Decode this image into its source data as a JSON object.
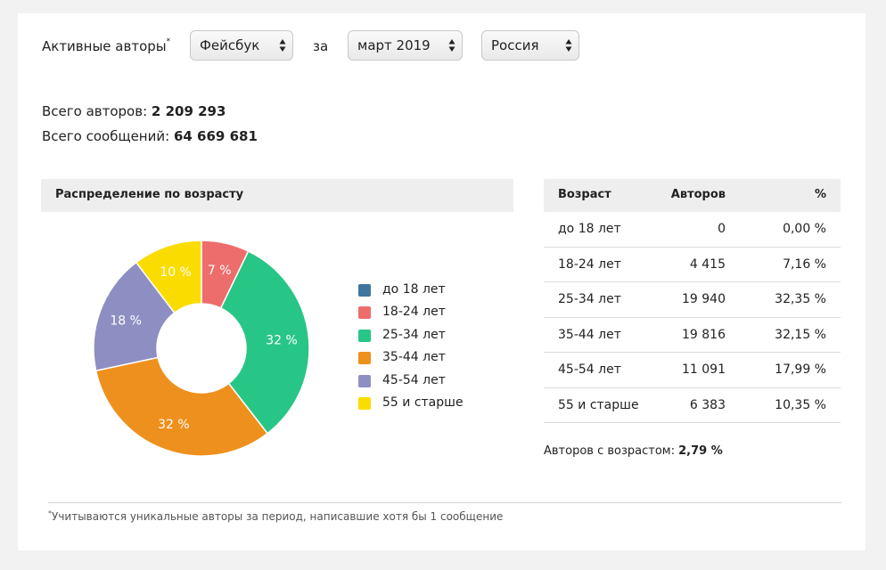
{
  "filters": {
    "label": "Активные авторы",
    "footnote_mark": "*",
    "network": "Фейсбук",
    "period_label": "за",
    "period": "март 2019",
    "region": "Россия"
  },
  "totals": {
    "authors_label": "Всего авторов:",
    "authors_value": "2 209 293",
    "messages_label": "Всего сообщений:",
    "messages_value": "64 669 681"
  },
  "panel_title": "Распределение по возрасту",
  "chart_data": {
    "type": "pie",
    "categories": [
      "до 18 лет",
      "18-24 лет",
      "25-34 лет",
      "35-44 лет",
      "45-54 лет",
      "55 и старше"
    ],
    "values": [
      0.0,
      7.16,
      32.35,
      32.15,
      17.99,
      10.35
    ],
    "data_labels": [
      "",
      "7 %",
      "32 %",
      "32 %",
      "18 %",
      "10 %"
    ],
    "colors": [
      "#3f76a0",
      "#ed6d6c",
      "#27c687",
      "#ee901d",
      "#8d8fc2",
      "#fbdc00"
    ],
    "donut": true,
    "legend_placement": "right"
  },
  "table": {
    "headers": [
      "Возраст",
      "Авторов",
      "%"
    ],
    "rows": [
      [
        "до 18 лет",
        "0",
        "0,00 %"
      ],
      [
        "18-24 лет",
        "4 415",
        "7,16 %"
      ],
      [
        "25-34 лет",
        "19 940",
        "32,35 %"
      ],
      [
        "35-44 лет",
        "19 816",
        "32,15 %"
      ],
      [
        "45-54 лет",
        "11 091",
        "17,99 %"
      ],
      [
        "55 и старше",
        "6 383",
        "10,35 %"
      ]
    ]
  },
  "with_age": {
    "label": "Авторов с возрастом:",
    "value": "2,79 %"
  },
  "footnote": {
    "mark": "*",
    "text": "Учитываются уникальные авторы за период, написавшие хотя бы 1 сообщение"
  },
  "colors": {
    "page_bg": "#f2f2f2",
    "card_bg": "#ffffff",
    "header_bg": "#eeeeee"
  }
}
